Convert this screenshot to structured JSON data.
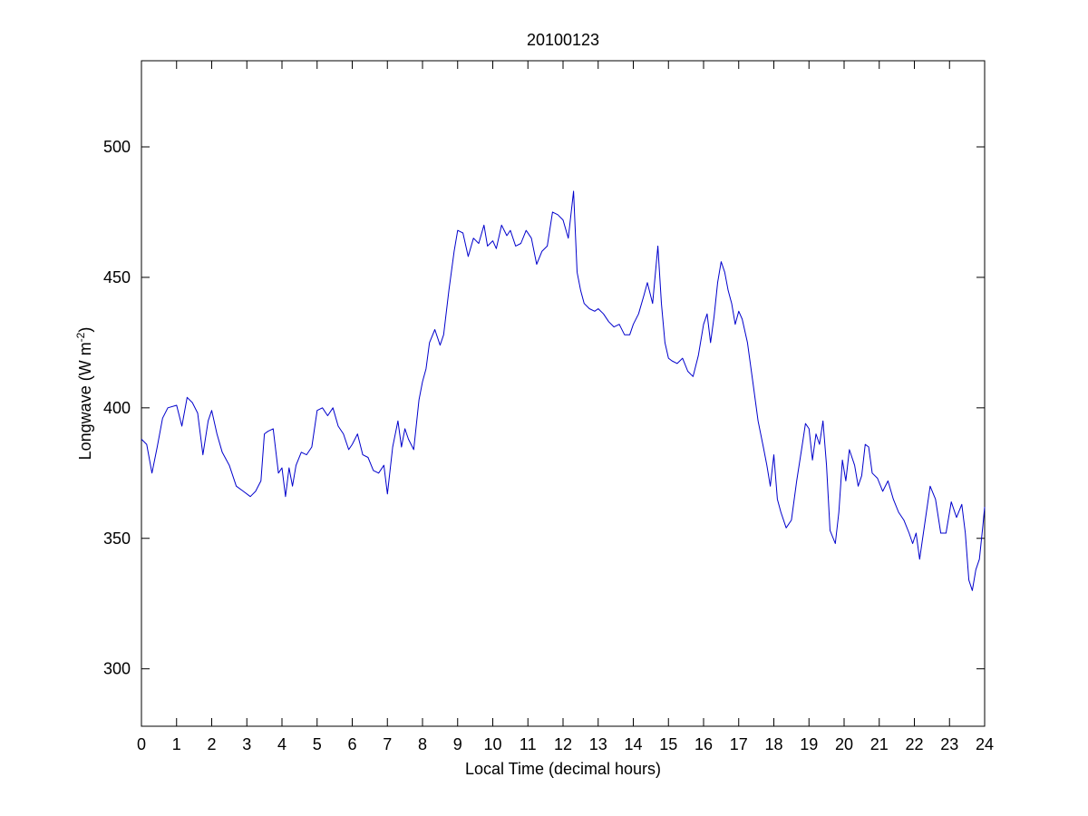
{
  "chart_data": {
    "type": "line",
    "title": "20100123",
    "xlabel": "Local Time (decimal hours)",
    "ylabel": {
      "main": "Longwave (W m",
      "superscript": "-2",
      "close": ")"
    },
    "xlim": [
      0,
      24
    ],
    "ylim": [
      278,
      533
    ],
    "xticks": [
      "0",
      "1",
      "2",
      "3",
      "4",
      "5",
      "6",
      "7",
      "8",
      "9",
      "10",
      "11",
      "12",
      "13",
      "14",
      "15",
      "16",
      "17",
      "18",
      "19",
      "20",
      "21",
      "22",
      "23",
      "24"
    ],
    "yticks": [
      "300",
      "350",
      "400",
      "450",
      "500"
    ],
    "grid": false,
    "series": [
      {
        "color": "#0000cc",
        "x": [
          0,
          0.15,
          0.3,
          0.45,
          0.6,
          0.75,
          1,
          1.15,
          1.3,
          1.45,
          1.6,
          1.75,
          1.9,
          2,
          2.15,
          2.3,
          2.5,
          2.7,
          2.9,
          3.1,
          3.25,
          3.4,
          3.5,
          3.6,
          3.75,
          3.9,
          4,
          4.1,
          4.2,
          4.3,
          4.4,
          4.55,
          4.7,
          4.85,
          5,
          5.15,
          5.3,
          5.45,
          5.6,
          5.75,
          5.9,
          6,
          6.15,
          6.3,
          6.45,
          6.6,
          6.75,
          6.9,
          7,
          7.15,
          7.3,
          7.4,
          7.5,
          7.6,
          7.75,
          7.9,
          8,
          8.1,
          8.2,
          8.35,
          8.5,
          8.6,
          8.75,
          8.9,
          9,
          9.15,
          9.3,
          9.45,
          9.6,
          9.75,
          9.85,
          10,
          10.1,
          10.25,
          10.4,
          10.5,
          10.65,
          10.8,
          10.95,
          11.1,
          11.25,
          11.4,
          11.55,
          11.7,
          11.85,
          12,
          12.15,
          12.3,
          12.4,
          12.5,
          12.6,
          12.75,
          12.9,
          13,
          13.15,
          13.3,
          13.45,
          13.6,
          13.75,
          13.9,
          14,
          14.15,
          14.3,
          14.4,
          14.55,
          14.7,
          14.8,
          14.9,
          15,
          15.1,
          15.25,
          15.4,
          15.55,
          15.7,
          15.85,
          16,
          16.1,
          16.2,
          16.3,
          16.4,
          16.5,
          16.6,
          16.7,
          16.8,
          16.9,
          17,
          17.1,
          17.25,
          17.4,
          17.55,
          17.7,
          17.8,
          17.9,
          18,
          18.1,
          18.2,
          18.35,
          18.5,
          18.65,
          18.8,
          18.9,
          19,
          19.1,
          19.2,
          19.3,
          19.4,
          19.5,
          19.6,
          19.75,
          19.85,
          19.95,
          20.05,
          20.15,
          20.3,
          20.4,
          20.5,
          20.6,
          20.7,
          20.8,
          20.95,
          21.1,
          21.25,
          21.4,
          21.55,
          21.7,
          21.85,
          21.95,
          22.05,
          22.15,
          22.3,
          22.45,
          22.6,
          22.75,
          22.9,
          23.05,
          23.2,
          23.35,
          23.45,
          23.55,
          23.65,
          23.75,
          23.85,
          23.95,
          24
        ],
        "y": [
          388,
          386,
          375,
          385,
          396,
          400,
          401,
          393,
          404,
          402,
          398,
          382,
          395,
          399,
          390,
          383,
          378,
          370,
          368,
          366,
          368,
          372,
          390,
          391,
          392,
          375,
          377,
          366,
          377,
          370,
          378,
          383,
          382,
          385,
          399,
          400,
          397,
          400,
          393,
          390,
          384,
          386,
          390,
          382,
          381,
          376,
          375,
          378,
          367,
          385,
          395,
          385,
          392,
          388,
          384,
          403,
          410,
          415,
          425,
          430,
          424,
          428,
          445,
          460,
          468,
          467,
          458,
          465,
          463,
          470,
          462,
          464,
          461,
          470,
          466,
          468,
          462,
          463,
          468,
          465,
          455,
          460,
          462,
          475,
          474,
          472,
          465,
          483,
          452,
          445,
          440,
          438,
          437,
          438,
          436,
          433,
          431,
          432,
          428,
          428,
          432,
          436,
          443,
          448,
          440,
          462,
          440,
          425,
          419,
          418,
          417,
          419,
          414,
          412,
          420,
          432,
          436,
          425,
          435,
          448,
          456,
          452,
          445,
          440,
          432,
          437,
          434,
          425,
          410,
          395,
          385,
          378,
          370,
          382,
          365,
          360,
          354,
          357,
          372,
          385,
          394,
          392,
          380,
          390,
          386,
          395,
          378,
          353,
          348,
          360,
          380,
          372,
          384,
          378,
          370,
          374,
          386,
          385,
          375,
          373,
          368,
          372,
          365,
          360,
          357,
          352,
          348,
          352,
          342,
          356,
          370,
          365,
          352,
          352,
          364,
          358,
          363,
          352,
          334,
          330,
          338,
          342,
          355,
          362
        ]
      }
    ]
  }
}
